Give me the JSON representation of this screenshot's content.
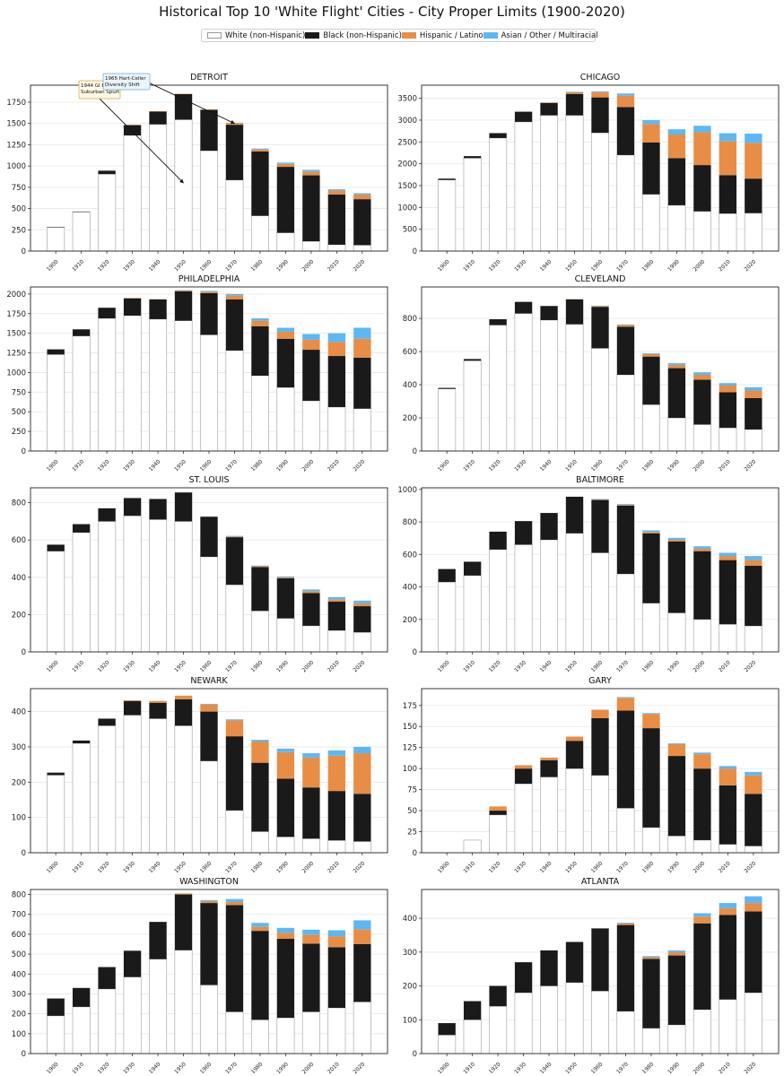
{
  "page": {
    "title": "Historical Top 10 'White Flight' Cities - City Proper Limits (1900-2020)"
  },
  "legend": [
    {
      "label": "White (non-Hispanic)",
      "color": "#ffffff",
      "border": "#999999"
    },
    {
      "label": "Black (non-Hispanic)",
      "color": "#1a1a1a",
      "border": "#1a1a1a"
    },
    {
      "label": "Hispanic / Latino",
      "color": "#e88d45",
      "border": "#e88d45"
    },
    {
      "label": "Asian / Other / Multiracial",
      "color": "#5bb8f5",
      "border": "#5bb8f5"
    }
  ],
  "colors": {
    "white": "#ffffff",
    "black": "#1a1a1a",
    "hispanic": "#e88d45",
    "asian": "#5bb8f5",
    "white_edge": "#aaaaaa",
    "grid": "#e6e6e6"
  },
  "chart_data": [
    {
      "type": "bar",
      "stacked": true,
      "title": "DETROIT",
      "categories": [
        "1900",
        "1910",
        "1920",
        "1930",
        "1940",
        "1950",
        "1960",
        "1970",
        "1980",
        "1990",
        "2000",
        "2010",
        "2020"
      ],
      "ylim": [
        0,
        1950
      ],
      "yticks": [
        0,
        250,
        500,
        750,
        1000,
        1250,
        1500,
        1750
      ],
      "series": [
        {
          "name": "White (non-Hispanic)",
          "values": [
            280,
            460,
            905,
            1360,
            1490,
            1545,
            1180,
            835,
            415,
            215,
            115,
            75,
            70
          ]
        },
        {
          "name": "Black (non-Hispanic)",
          "values": [
            5,
            5,
            40,
            120,
            150,
            300,
            480,
            650,
            755,
            775,
            775,
            590,
            540
          ]
        },
        {
          "name": "Hispanic / Latino",
          "values": [
            0,
            0,
            0,
            5,
            5,
            5,
            5,
            20,
            25,
            35,
            45,
            48,
            55
          ]
        },
        {
          "name": "Asian / Other / Multiracial",
          "values": [
            0,
            0,
            0,
            0,
            0,
            0,
            0,
            5,
            10,
            15,
            20,
            14,
            15
          ]
        }
      ],
      "annotations": [
        {
          "text": "1944 GI Bill\nSuburban Spurt",
          "at_category": "1950",
          "at_value": 800
        },
        {
          "text": "1965 Hart-Celler\nDiversity Shift",
          "at_category": "1970",
          "at_value": 1500
        }
      ]
    },
    {
      "type": "bar",
      "stacked": true,
      "title": "CHICAGO",
      "categories": [
        "1900",
        "1910",
        "1920",
        "1930",
        "1940",
        "1950",
        "1960",
        "1970",
        "1980",
        "1990",
        "2000",
        "2010",
        "2020"
      ],
      "ylim": [
        0,
        3800
      ],
      "yticks": [
        0,
        500,
        1000,
        1500,
        2000,
        2500,
        3000,
        3500
      ],
      "series": [
        {
          "name": "White (non-Hispanic)",
          "values": [
            1630,
            2130,
            2590,
            2960,
            3110,
            3110,
            2710,
            2200,
            1300,
            1050,
            910,
            860,
            870
          ]
        },
        {
          "name": "Black (non-Hispanic)",
          "values": [
            30,
            45,
            110,
            230,
            280,
            490,
            810,
            1100,
            1190,
            1080,
            1060,
            880,
            790
          ]
        },
        {
          "name": "Hispanic / Latino",
          "values": [
            0,
            0,
            5,
            10,
            15,
            40,
            120,
            260,
            420,
            540,
            750,
            780,
            820
          ]
        },
        {
          "name": "Asian / Other / Multiracial",
          "values": [
            0,
            0,
            0,
            5,
            5,
            10,
            20,
            50,
            90,
            120,
            150,
            180,
            210
          ]
        }
      ]
    },
    {
      "type": "bar",
      "stacked": true,
      "title": "PHILADELPHIA",
      "categories": [
        "1900",
        "1910",
        "1920",
        "1930",
        "1940",
        "1950",
        "1960",
        "1970",
        "1980",
        "1990",
        "2000",
        "2010",
        "2020"
      ],
      "ylim": [
        0,
        2090
      ],
      "yticks": [
        0,
        250,
        500,
        750,
        1000,
        1250,
        1500,
        1750,
        2000
      ],
      "series": [
        {
          "name": "White (non-Hispanic)",
          "values": [
            1230,
            1465,
            1690,
            1725,
            1680,
            1660,
            1480,
            1280,
            960,
            810,
            640,
            560,
            540
          ]
        },
        {
          "name": "Black (non-Hispanic)",
          "values": [
            65,
            85,
            135,
            220,
            250,
            375,
            530,
            650,
            630,
            620,
            650,
            650,
            650
          ]
        },
        {
          "name": "Hispanic / Latino",
          "values": [
            0,
            0,
            0,
            5,
            5,
            10,
            20,
            50,
            70,
            90,
            130,
            180,
            240
          ]
        },
        {
          "name": "Asian / Other / Multiracial",
          "values": [
            0,
            0,
            0,
            0,
            0,
            5,
            10,
            20,
            30,
            50,
            70,
            110,
            140
          ]
        }
      ]
    },
    {
      "type": "bar",
      "stacked": true,
      "title": "CLEVELAND",
      "categories": [
        "1900",
        "1910",
        "1920",
        "1930",
        "1940",
        "1950",
        "1960",
        "1970",
        "1980",
        "1990",
        "2000",
        "2010",
        "2020"
      ],
      "ylim": [
        0,
        990
      ],
      "yticks": [
        0,
        200,
        400,
        600,
        800
      ],
      "series": [
        {
          "name": "White (non-Hispanic)",
          "values": [
            375,
            545,
            760,
            830,
            790,
            765,
            620,
            460,
            280,
            200,
            160,
            140,
            130
          ]
        },
        {
          "name": "Black (non-Hispanic)",
          "values": [
            6,
            10,
            35,
            70,
            85,
            150,
            250,
            290,
            290,
            300,
            270,
            215,
            190
          ]
        },
        {
          "name": "Hispanic / Latino",
          "values": [
            0,
            0,
            0,
            0,
            0,
            2,
            5,
            10,
            15,
            20,
            30,
            40,
            45
          ]
        },
        {
          "name": "Asian / Other / Multiracial",
          "values": [
            0,
            0,
            0,
            0,
            0,
            0,
            2,
            3,
            5,
            10,
            15,
            15,
            20
          ]
        }
      ]
    },
    {
      "type": "bar",
      "stacked": true,
      "title": "ST. LOUIS",
      "categories": [
        "1900",
        "1910",
        "1920",
        "1930",
        "1940",
        "1950",
        "1960",
        "1970",
        "1980",
        "1990",
        "2000",
        "2010",
        "2020"
      ],
      "ylim": [
        0,
        880
      ],
      "yticks": [
        0,
        200,
        400,
        600,
        800
      ],
      "series": [
        {
          "name": "White (non-Hispanic)",
          "values": [
            540,
            640,
            700,
            730,
            710,
            700,
            510,
            360,
            220,
            180,
            140,
            115,
            105
          ]
        },
        {
          "name": "Black (non-Hispanic)",
          "values": [
            35,
            45,
            70,
            95,
            110,
            155,
            215,
            255,
            235,
            215,
            175,
            155,
            140
          ]
        },
        {
          "name": "Hispanic / Latino",
          "values": [
            0,
            0,
            0,
            0,
            0,
            0,
            0,
            4,
            5,
            5,
            10,
            12,
            15
          ]
        },
        {
          "name": "Asian / Other / Multiracial",
          "values": [
            0,
            0,
            0,
            0,
            0,
            0,
            0,
            3,
            3,
            5,
            10,
            12,
            15
          ]
        }
      ]
    },
    {
      "type": "bar",
      "stacked": true,
      "title": "BALTIMORE",
      "categories": [
        "1900",
        "1910",
        "1920",
        "1930",
        "1940",
        "1950",
        "1960",
        "1970",
        "1980",
        "1990",
        "2000",
        "2010",
        "2020"
      ],
      "ylim": [
        0,
        1010
      ],
      "yticks": [
        0,
        200,
        400,
        600,
        800,
        1000
      ],
      "series": [
        {
          "name": "White (non-Hispanic)",
          "values": [
            430,
            470,
            630,
            660,
            690,
            730,
            610,
            480,
            300,
            240,
            200,
            170,
            160
          ]
        },
        {
          "name": "Black (non-Hispanic)",
          "values": [
            80,
            85,
            110,
            145,
            165,
            225,
            325,
            420,
            430,
            440,
            420,
            395,
            370
          ]
        },
        {
          "name": "Hispanic / Latino",
          "values": [
            0,
            0,
            0,
            0,
            0,
            0,
            3,
            5,
            8,
            10,
            15,
            25,
            35
          ]
        },
        {
          "name": "Asian / Other / Multiracial",
          "values": [
            0,
            0,
            0,
            0,
            0,
            0,
            3,
            5,
            10,
            12,
            15,
            20,
            25
          ]
        }
      ]
    },
    {
      "type": "bar",
      "stacked": true,
      "title": "NEWARK",
      "categories": [
        "1900",
        "1910",
        "1920",
        "1930",
        "1940",
        "1950",
        "1960",
        "1970",
        "1980",
        "1990",
        "2000",
        "2010",
        "2020"
      ],
      "ylim": [
        0,
        465
      ],
      "yticks": [
        0,
        100,
        200,
        300,
        400
      ],
      "series": [
        {
          "name": "White (non-Hispanic)",
          "values": [
            220,
            310,
            360,
            390,
            380,
            360,
            260,
            120,
            60,
            45,
            40,
            35,
            32
          ]
        },
        {
          "name": "Black (non-Hispanic)",
          "values": [
            7,
            8,
            20,
            40,
            45,
            75,
            140,
            210,
            195,
            165,
            145,
            140,
            135
          ]
        },
        {
          "name": "Hispanic / Latino",
          "values": [
            0,
            0,
            0,
            2,
            5,
            10,
            20,
            45,
            60,
            75,
            85,
            100,
            115
          ]
        },
        {
          "name": "Asian / Other / Multiracial",
          "values": [
            0,
            0,
            0,
            0,
            0,
            0,
            2,
            3,
            5,
            10,
            12,
            15,
            18
          ]
        }
      ]
    },
    {
      "type": "bar",
      "stacked": true,
      "title": "GARY",
      "categories": [
        "1900",
        "1910",
        "1920",
        "1930",
        "1940",
        "1950",
        "1960",
        "1970",
        "1980",
        "1990",
        "2000",
        "2010",
        "2020"
      ],
      "ylim": [
        0,
        195
      ],
      "yticks": [
        0,
        25,
        50,
        75,
        100,
        125,
        150,
        175
      ],
      "series": [
        {
          "name": "White (non-Hispanic)",
          "values": [
            0,
            15,
            45,
            82,
            90,
            100,
            92,
            53,
            30,
            20,
            15,
            10,
            8
          ]
        },
        {
          "name": "Black (non-Hispanic)",
          "values": [
            0,
            0,
            5,
            18,
            20,
            33,
            68,
            116,
            118,
            95,
            85,
            70,
            62
          ]
        },
        {
          "name": "Hispanic / Latino",
          "values": [
            0,
            0,
            5,
            4,
            3,
            5,
            10,
            15,
            17,
            14,
            17,
            20,
            22
          ]
        },
        {
          "name": "Asian / Other / Multiracial",
          "values": [
            0,
            0,
            0,
            0,
            0,
            0,
            0,
            1,
            1,
            1,
            2,
            3,
            4
          ]
        }
      ]
    },
    {
      "type": "bar",
      "stacked": true,
      "title": "WASHINGTON",
      "categories": [
        "1900",
        "1910",
        "1920",
        "1930",
        "1940",
        "1950",
        "1960",
        "1970",
        "1980",
        "1990",
        "2000",
        "2010",
        "2020"
      ],
      "ylim": [
        0,
        825
      ],
      "yticks": [
        0,
        100,
        200,
        300,
        400,
        500,
        600,
        700,
        800
      ],
      "series": [
        {
          "name": "White (non-Hispanic)",
          "values": [
            190,
            235,
            325,
            385,
            475,
            520,
            345,
            210,
            170,
            180,
            210,
            230,
            260
          ]
        },
        {
          "name": "Black (non-Hispanic)",
          "values": [
            87,
            95,
            110,
            132,
            187,
            280,
            412,
            537,
            447,
            397,
            343,
            305,
            290
          ]
        },
        {
          "name": "Hispanic / Latino",
          "values": [
            0,
            0,
            0,
            0,
            0,
            5,
            10,
            15,
            20,
            30,
            45,
            55,
            75
          ]
        },
        {
          "name": "Asian / Other / Multiracial",
          "values": [
            0,
            0,
            0,
            0,
            0,
            0,
            5,
            15,
            20,
            25,
            25,
            30,
            45
          ]
        }
      ]
    },
    {
      "type": "bar",
      "stacked": true,
      "title": "ATLANTA",
      "categories": [
        "1900",
        "1910",
        "1920",
        "1930",
        "1940",
        "1950",
        "1960",
        "1970",
        "1980",
        "1990",
        "2000",
        "2010",
        "2020"
      ],
      "ylim": [
        0,
        485
      ],
      "yticks": [
        0,
        100,
        200,
        300,
        400
      ],
      "series": [
        {
          "name": "White (non-Hispanic)",
          "values": [
            55,
            100,
            140,
            180,
            200,
            210,
            185,
            125,
            75,
            85,
            130,
            160,
            180
          ]
        },
        {
          "name": "Black (non-Hispanic)",
          "values": [
            35,
            55,
            60,
            90,
            105,
            120,
            185,
            255,
            205,
            205,
            255,
            250,
            240
          ]
        },
        {
          "name": "Hispanic / Latino",
          "values": [
            0,
            0,
            0,
            0,
            0,
            0,
            0,
            5,
            5,
            10,
            20,
            20,
            25
          ]
        },
        {
          "name": "Asian / Other / Multiracial",
          "values": [
            0,
            0,
            0,
            0,
            0,
            0,
            0,
            2,
            3,
            5,
            10,
            15,
            20
          ]
        }
      ]
    }
  ]
}
